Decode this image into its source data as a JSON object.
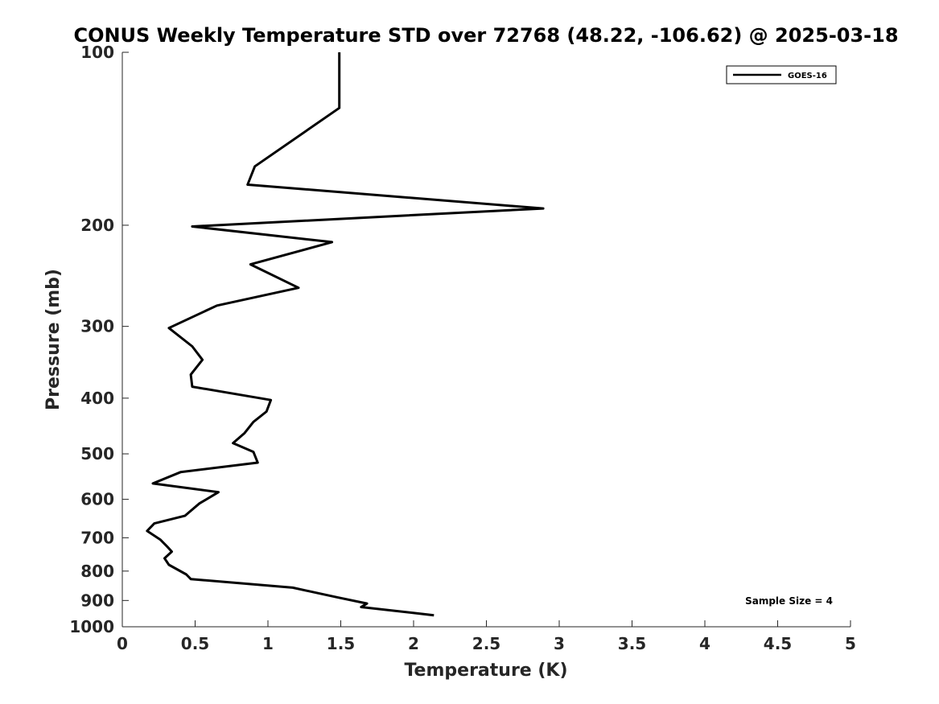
{
  "chart_data": {
    "type": "line",
    "title": "CONUS Weekly Temperature STD over 72768 (48.22, -106.62) @ 2025-03-18",
    "xlabel": "Temperature (K)",
    "ylabel": "Pressure (mb)",
    "xlim": [
      0,
      5
    ],
    "ylim": [
      100,
      1000
    ],
    "y_scale": "log",
    "y_reversed": true,
    "x_ticks": [
      0,
      0.5,
      1,
      1.5,
      2,
      2.5,
      3,
      3.5,
      4,
      4.5,
      5
    ],
    "x_tick_labels": [
      "0",
      "0.5",
      "1",
      "1.5",
      "2",
      "2.5",
      "3",
      "3.5",
      "4",
      "4.5",
      "5"
    ],
    "y_ticks": [
      100,
      200,
      300,
      400,
      500,
      600,
      700,
      800,
      900,
      1000
    ],
    "y_tick_labels": [
      "100",
      "200",
      "300",
      "400",
      "500",
      "600",
      "700",
      "800",
      "900",
      "1000"
    ],
    "grid": false,
    "legend_position": "top-right",
    "series": [
      {
        "name": "GOES-16",
        "color": "#000000",
        "x": [
          1.49,
          1.49,
          0.91,
          0.86,
          2.89,
          0.48,
          1.44,
          0.88,
          1.21,
          0.65,
          0.32,
          0.48,
          0.55,
          0.47,
          0.48,
          1.02,
          0.99,
          0.9,
          0.84,
          0.76,
          0.9,
          0.93,
          0.4,
          0.21,
          0.66,
          0.53,
          0.43,
          0.22,
          0.17,
          0.26,
          0.31,
          0.34,
          0.29,
          0.32,
          0.44,
          0.47,
          1.17,
          1.47,
          1.68,
          1.64,
          2.14
        ],
        "y": [
          100,
          125,
          158,
          170,
          187,
          201,
          214,
          234,
          257,
          276,
          302,
          325,
          343,
          364,
          382,
          403,
          422,
          440,
          460,
          479,
          496,
          518,
          538,
          563,
          583,
          610,
          641,
          661,
          681,
          705,
          726,
          740,
          760,
          780,
          811,
          826,
          855,
          888,
          911,
          924,
          955
        ]
      }
    ],
    "annotations": [
      "Sample Size = 4"
    ]
  }
}
